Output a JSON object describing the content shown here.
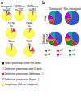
{
  "chart_data": [
    {
      "type": "pie",
      "title": "Anergized\nn=144",
      "values": [
        3,
        4,
        7,
        4,
        82
      ],
      "colors": [
        "#222222",
        "#eeeeee",
        "#ee3333",
        "#ffaaaa",
        "#ffff44"
      ],
      "annotations": [
        "a"
      ],
      "categories": [
        "Intact proviruses from the clone",
        "Defective proviruses with 5' dele...",
        "Defective proviruses (deletions...)",
        "Defective proviruses (hyper...)",
        "Singletons (did not reappear)"
      ]
    },
    {
      "type": "pie",
      "title": "T(EM)/res\nn=1265",
      "values": [
        1,
        1,
        2,
        2,
        94
      ],
      "colors": [
        "#222222",
        "#eeeeee",
        "#ee3333",
        "#ffaaaa",
        "#ffff44"
      ]
    },
    {
      "type": "pie",
      "title": "CCR6+res\nn=981",
      "values": [
        1,
        1,
        2,
        2,
        94
      ],
      "colors": [
        "#222222",
        "#eeeeee",
        "#ee3333",
        "#ffaaaa",
        "#ffff44"
      ]
    },
    {
      "type": "pie",
      "title": "T(CM)\nn=",
      "values": [
        2,
        4,
        10,
        3,
        81
      ],
      "colors": [
        "#222222",
        "#eeeeee",
        "#ee3333",
        "#ffaaaa",
        "#ffff44"
      ]
    },
    {
      "type": "pie",
      "title": "T(EM)\nn=",
      "values": [
        1,
        2,
        3,
        2,
        92
      ],
      "colors": [
        "#222222",
        "#eeeeee",
        "#ee3333",
        "#ffaaaa",
        "#ffff44"
      ]
    },
    {
      "type": "pie",
      "title": "Naive\nn=",
      "values": [
        1,
        1,
        1,
        1,
        96
      ],
      "colors": [
        "#222222",
        "#eeeeee",
        "#ee3333",
        "#ffaaaa",
        "#ffff44"
      ]
    },
    {
      "type": "pie",
      "title": "Th17\nn=",
      "values": [
        4,
        8,
        14,
        6,
        68
      ],
      "colors": [
        "#222222",
        "#eeeeee",
        "#ee3333",
        "#ffaaaa",
        "#ffff44"
      ]
    },
    {
      "type": "pie",
      "title": "Clonotyped",
      "values": [
        55,
        8,
        3,
        2,
        15,
        17
      ],
      "colors": [
        "#3355cc",
        "#dd2222",
        "#228822",
        "#ff8800",
        "#bb00bb",
        "#00aaaa"
      ],
      "annotations": [
        "b",
        "Intact"
      ],
      "categories": [
        "c1",
        "c2",
        "c3",
        "c4",
        "c5",
        "c6"
      ]
    },
    {
      "type": "pie",
      "title": "Non-clonotyped",
      "values": [
        62,
        6,
        3,
        2,
        18,
        9
      ],
      "colors": [
        "#3355cc",
        "#dd2222",
        "#228822",
        "#ff8800",
        "#bb00bb",
        "#00aaaa"
      ]
    },
    {
      "type": "pie",
      "values": [
        42,
        14,
        12,
        6,
        14,
        12
      ],
      "colors": [
        "#3355cc",
        "#dd2222",
        "#228822",
        "#ff8800",
        "#bb00bb",
        "#00aaaa"
      ],
      "annotations": [
        "Defective\nhypermut"
      ]
    },
    {
      "type": "pie",
      "values": [
        38,
        12,
        18,
        8,
        14,
        10
      ],
      "colors": [
        "#3355cc",
        "#dd2222",
        "#228822",
        "#ff8800",
        "#bb00bb",
        "#00aaaa"
      ]
    }
  ]
}
